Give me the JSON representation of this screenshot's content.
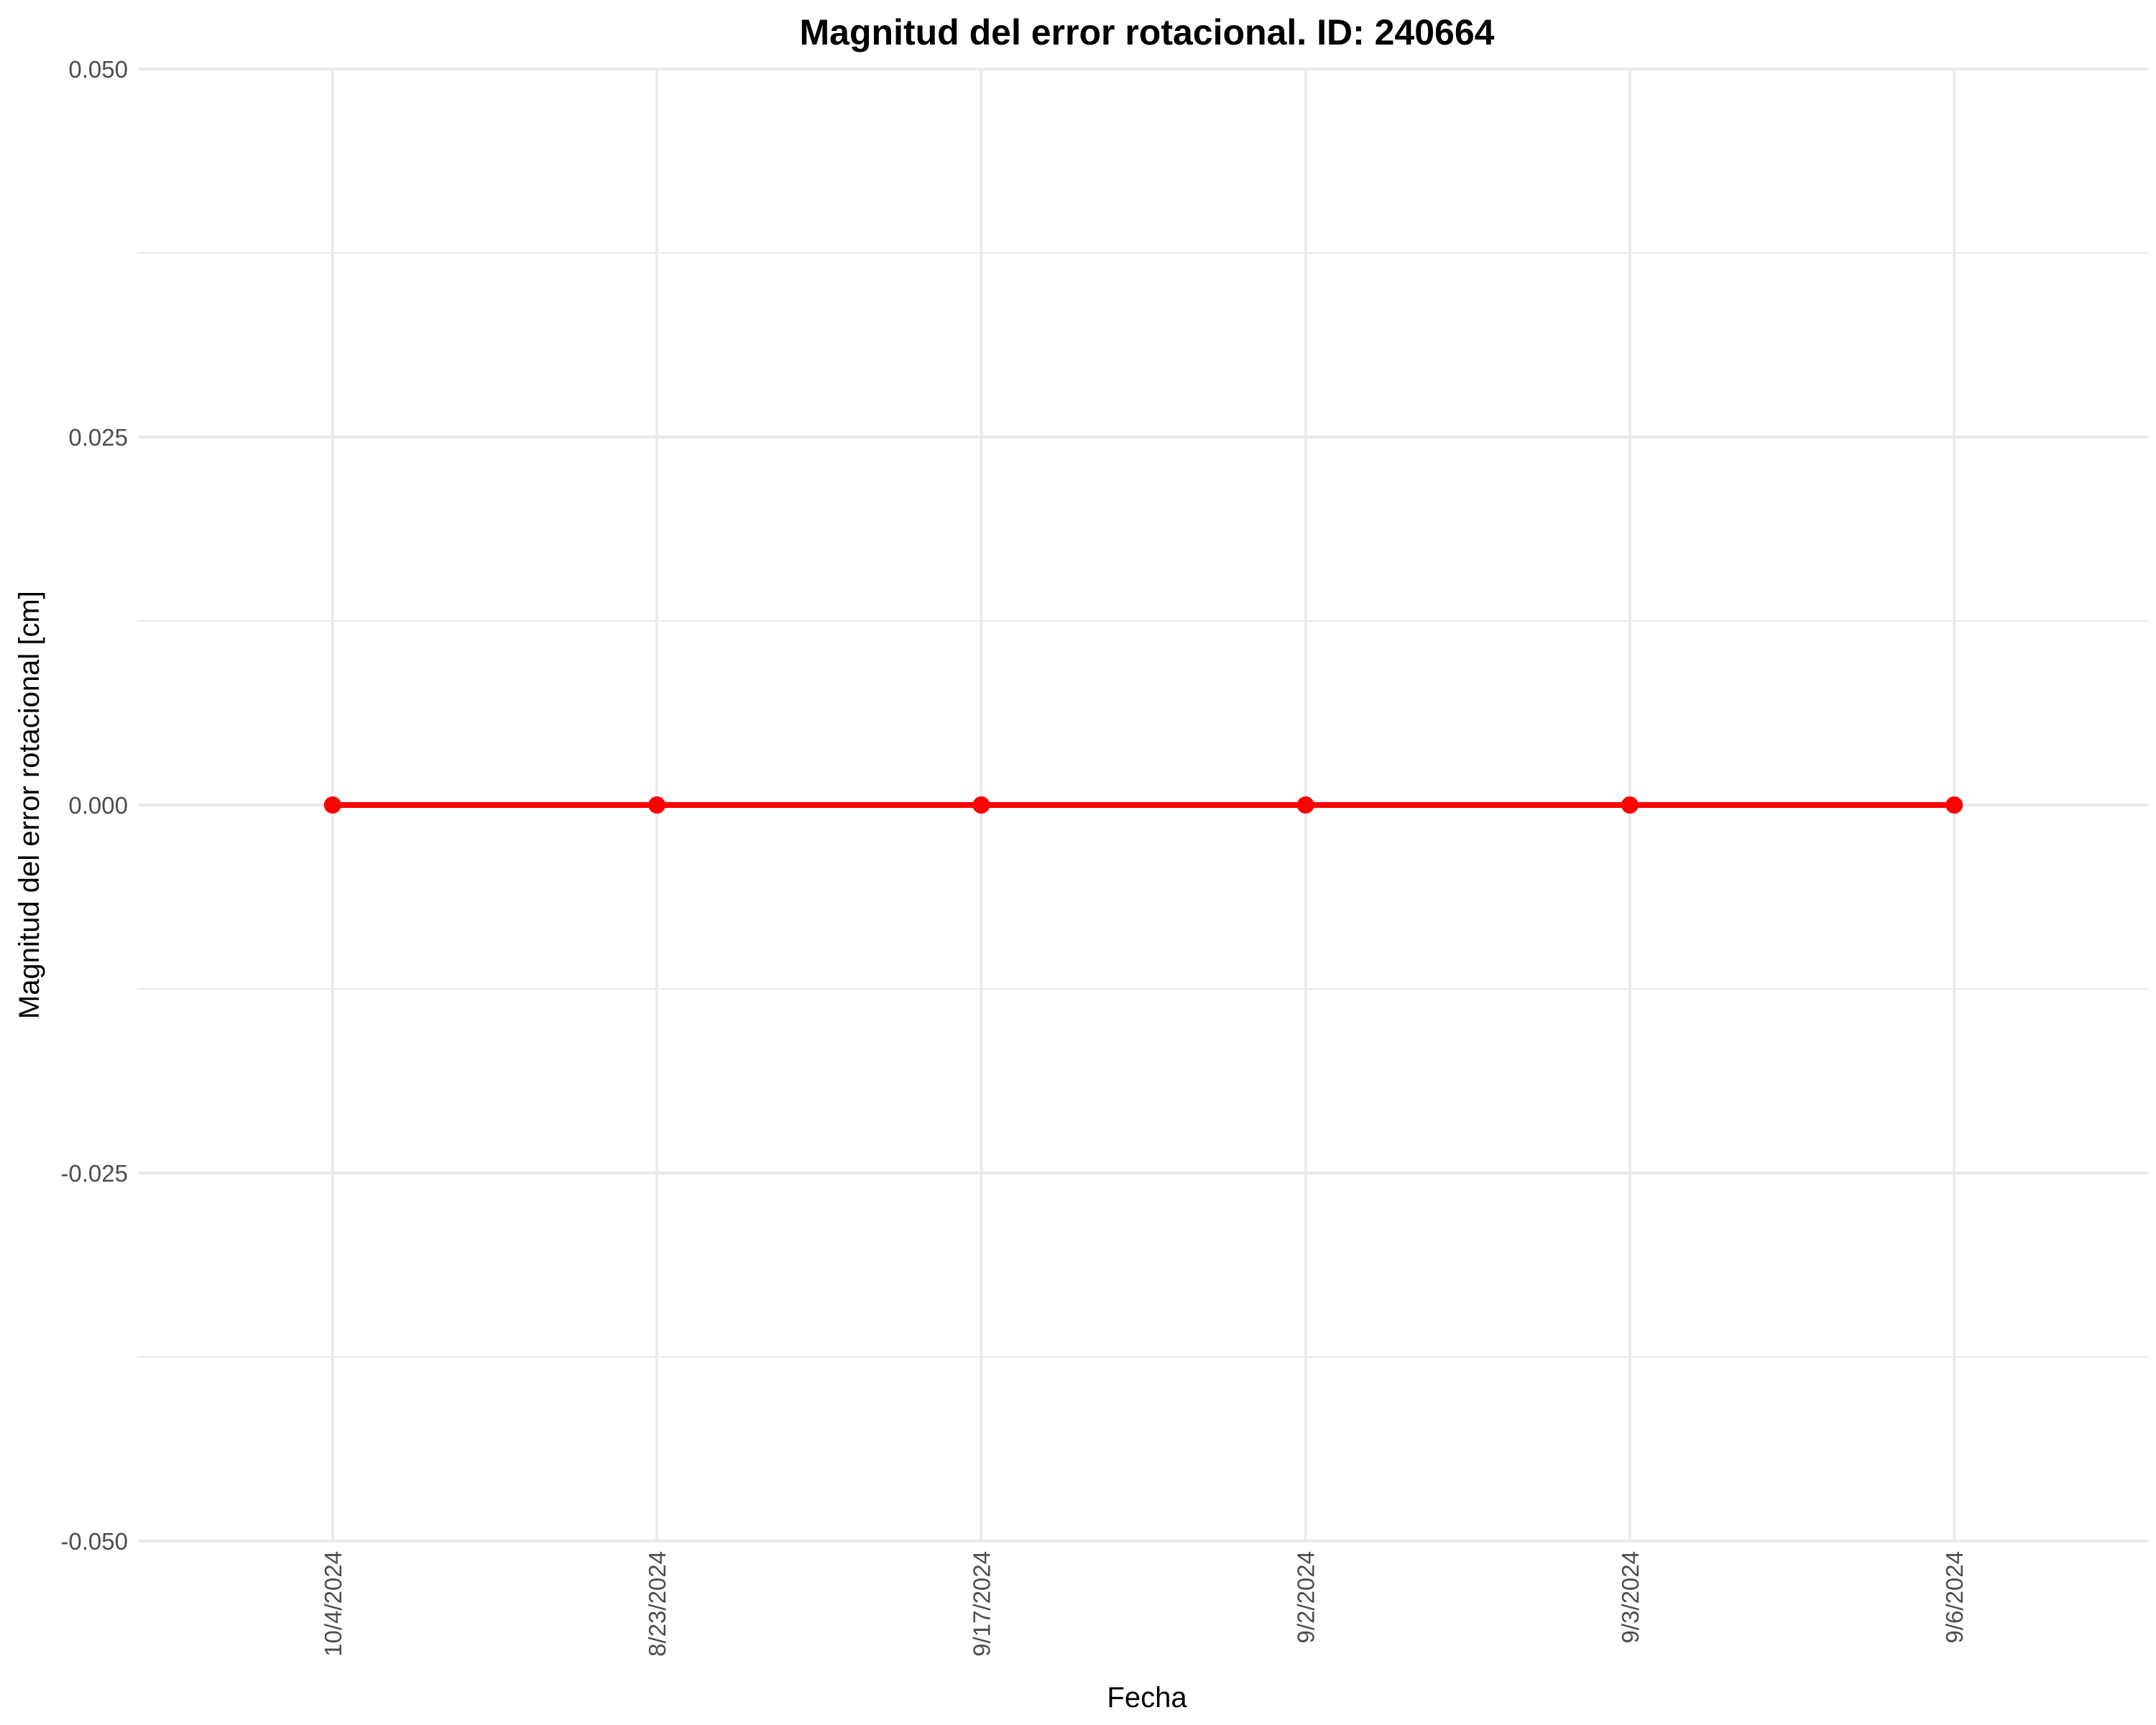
{
  "chart_data": {
    "type": "line",
    "title": "Magnitud del error rotacional. ID: 240664",
    "xlabel": "Fecha",
    "ylabel": "Magnitud del error rotacional [cm]",
    "categories": [
      "10/4/2024",
      "8/23/2024",
      "9/17/2024",
      "9/2/2024",
      "9/3/2024",
      "9/6/2024"
    ],
    "series": [
      {
        "values": [
          0,
          0,
          0,
          0,
          0,
          0
        ],
        "color": "#ff0000"
      }
    ],
    "ylim": [
      -0.05,
      0.05
    ],
    "y_ticks": [
      -0.05,
      -0.025,
      0,
      0.025,
      0.05
    ],
    "y_tick_labels": [
      "-0.050",
      "-0.025",
      "0.000",
      "0.025",
      "0.050"
    ],
    "grid": true,
    "x_tick_rotation": "vertical",
    "line_color": "#ff0000",
    "marker": "circle"
  }
}
